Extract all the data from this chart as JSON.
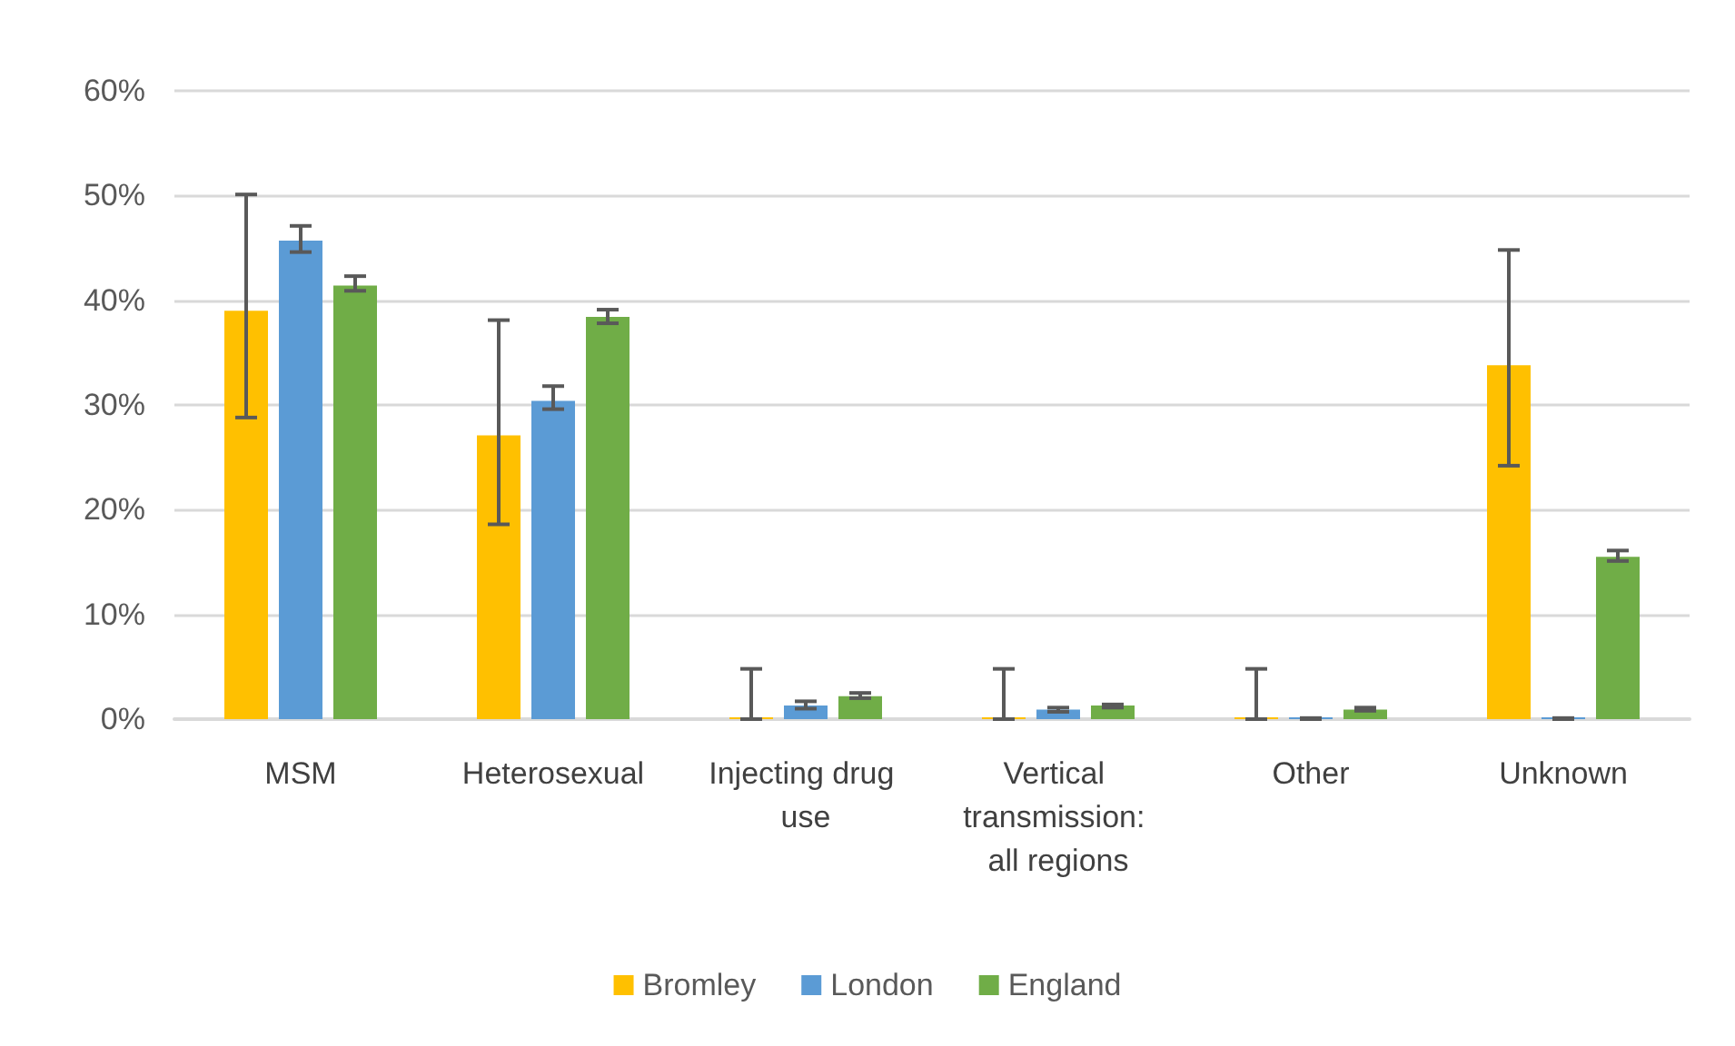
{
  "chart_data": {
    "type": "bar",
    "categories": [
      "MSM",
      "Heterosexual",
      "Injecting drug use",
      "Vertical transmission: all regions",
      "Other",
      "Unknown"
    ],
    "series": [
      {
        "name": "Bromley",
        "color": "#ffc000",
        "values": [
          39.0,
          27.1,
          0,
          0,
          0,
          33.8
        ],
        "errors": [
          [
            28.8,
            50.1
          ],
          [
            18.6,
            38.1
          ],
          [
            0,
            4.8
          ],
          [
            0,
            4.8
          ],
          [
            0,
            4.8
          ],
          [
            24.2,
            44.8
          ]
        ]
      },
      {
        "name": "London",
        "color": "#5b9bd5",
        "values": [
          45.7,
          30.4,
          1.3,
          0.9,
          0,
          0
        ],
        "errors": [
          [
            44.6,
            47.1
          ],
          [
            29.6,
            31.8
          ],
          [
            1.0,
            1.7
          ],
          [
            0.7,
            1.1
          ],
          [
            0,
            0.1
          ],
          [
            0,
            0.1
          ]
        ]
      },
      {
        "name": "England",
        "color": "#70ad47",
        "values": [
          41.4,
          38.4,
          2.2,
          1.3,
          0.9,
          15.5
        ],
        "errors": [
          [
            40.9,
            42.3
          ],
          [
            37.8,
            39.1
          ],
          [
            2.0,
            2.5
          ],
          [
            1.1,
            1.4
          ],
          [
            0.8,
            1.1
          ],
          [
            15.1,
            16.1
          ]
        ]
      }
    ],
    "ylim": [
      0,
      60
    ],
    "yticks": [
      {
        "value": 0,
        "label": "0%"
      },
      {
        "value": 10,
        "label": "10%"
      },
      {
        "value": 20,
        "label": "20%"
      },
      {
        "value": 30,
        "label": "30%"
      },
      {
        "value": 40,
        "label": "40%"
      },
      {
        "value": 50,
        "label": "50%"
      },
      {
        "value": 60,
        "label": "60%"
      }
    ],
    "grid": "y",
    "legend": "bottom"
  }
}
